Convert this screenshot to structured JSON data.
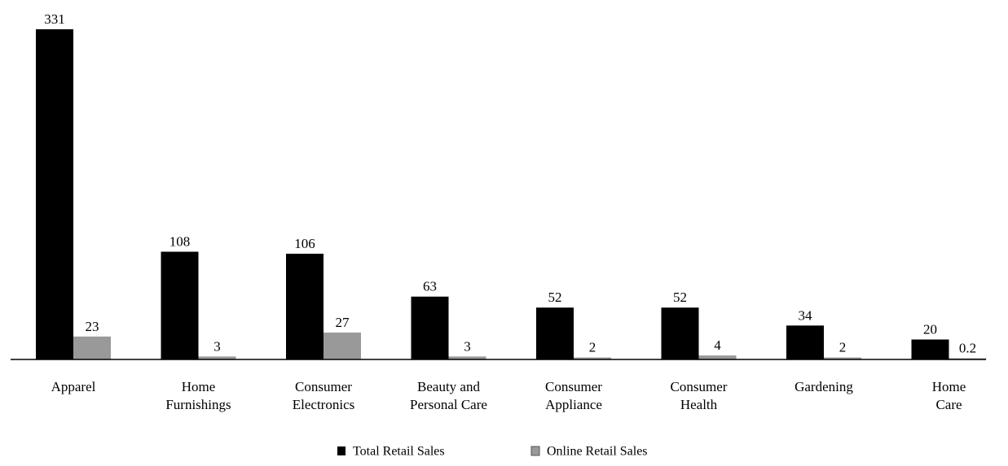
{
  "chart_data": {
    "type": "bar",
    "title": "",
    "xlabel": "",
    "ylabel": "",
    "ylim": [
      0,
      331
    ],
    "grid": false,
    "legend_position": "bottom-center",
    "categories": [
      [
        "Apparel"
      ],
      [
        "Home",
        "Furnishings"
      ],
      [
        "Consumer",
        "Electronics"
      ],
      [
        "Beauty and",
        "Personal Care"
      ],
      [
        "Consumer",
        "Appliance"
      ],
      [
        "Consumer",
        "Health"
      ],
      [
        "Gardening"
      ],
      [
        "Home",
        "Care"
      ]
    ],
    "series": [
      {
        "name": "Total Retail Sales",
        "color": "#000000",
        "values": [
          331,
          108,
          106,
          63,
          52,
          52,
          34,
          20
        ],
        "labels": [
          "331",
          "108",
          "106",
          "63",
          "52",
          "52",
          "34",
          "20"
        ]
      },
      {
        "name": "Online Retail Sales",
        "color": "#999999",
        "values": [
          23,
          3,
          27,
          3,
          2,
          4,
          2,
          0.2
        ],
        "labels": [
          "23",
          "3",
          "27",
          "3",
          "2",
          "4",
          "2",
          "0.2"
        ]
      }
    ]
  }
}
